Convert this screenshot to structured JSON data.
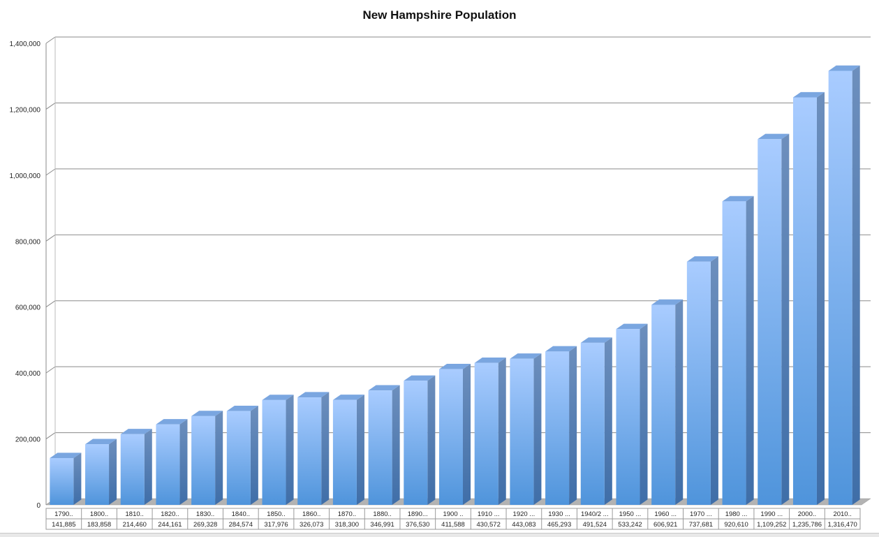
{
  "chart_data": {
    "type": "bar",
    "title": "New Hampshire Population",
    "xlabel": "",
    "ylabel": "",
    "ylim": [
      0,
      1400000
    ],
    "yticks": [
      "0",
      "200,000",
      "400,000",
      "600,000",
      "800,000",
      "1,000,000",
      "1,200,000",
      "1,400,000"
    ],
    "ytick_values": [
      0,
      200000,
      400000,
      600000,
      800000,
      1000000,
      1200000,
      1400000
    ],
    "grid": true,
    "legend": "none",
    "categories": [
      "1790..",
      "1800..",
      "1810..",
      "1820..",
      "1830..",
      "1840..",
      "1850..",
      "1860..",
      "1870..",
      "1880..",
      "1890...",
      "1900 ..",
      "1910 ...",
      "1920 ...",
      "1930 ...",
      "1940/2 ...",
      "1950 ...",
      "1960 ...",
      "1970 ...",
      "1980 ...",
      "1990 ...",
      "2000..",
      "2010.."
    ],
    "value_labels": [
      "141,885",
      "183,858",
      "214,460",
      "244,161",
      "269,328",
      "284,574",
      "317,976",
      "326,073",
      "318,300",
      "346,991",
      "376,530",
      "411,588",
      "430,572",
      "443,083",
      "465,293",
      "491,524",
      "533,242",
      "606,921",
      "737,681",
      "920,610",
      "1,109,252",
      "1,235,786",
      "1,316,470"
    ],
    "values": [
      141885,
      183858,
      214460,
      244161,
      269328,
      284574,
      317976,
      326073,
      318300,
      346991,
      376530,
      411588,
      430572,
      443083,
      465293,
      491524,
      533242,
      606921,
      737681,
      920610,
      1109252,
      1235786,
      1316470
    ],
    "colors": {
      "bar_top": "#a9ccff",
      "bar_bottom": "#4f94db",
      "bar_side": "#3f6ea8",
      "bar_cap": "#7aa6e0",
      "grid": "#8a8a8a",
      "floor": "#b3b3b3"
    }
  }
}
